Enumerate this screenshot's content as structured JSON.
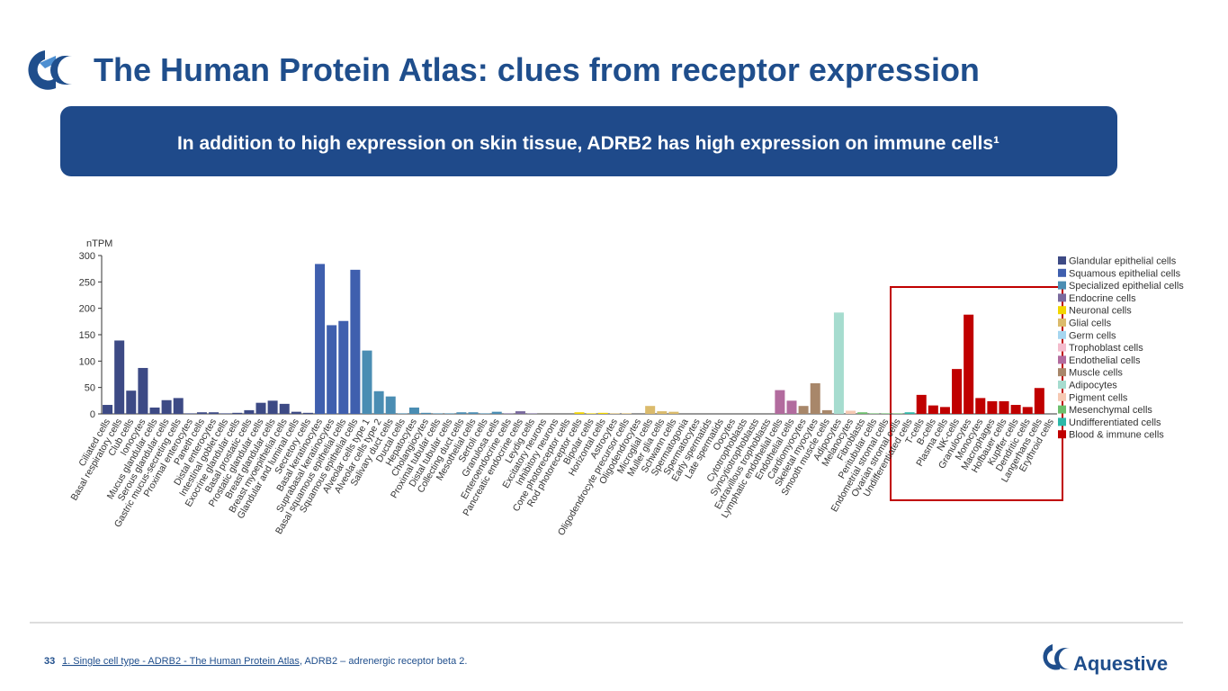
{
  "title": "The Human Protein Atlas: clues from receptor expression",
  "banner": "In addition to high expression on skin tissue, ADRB2 has high expression on immune cells¹",
  "chart_data": {
    "type": "bar",
    "y_label": "nTPM",
    "ylim": [
      0,
      300
    ],
    "yticks": [
      0,
      50,
      100,
      150,
      200,
      250,
      300
    ],
    "series": [
      {
        "name": "Glandular epithelial cells",
        "color": "#3d4a85",
        "categories": [
          "Ciliated cells",
          "Basal respiratory cells",
          "Club cells",
          "Ionocytes",
          "Mucus glandular cells",
          "Serous glandular cells",
          "Gastric mucus-secreting cells",
          "Proximal enterocytes",
          "Paneth cells",
          "Distal enterocytes",
          "Intestinal goblet cells",
          "Exocrine glandular cells",
          "Basal prostatic cells",
          "Prostatic glandular cells",
          "Breast glandular cells",
          "Breast myoepithelial cells",
          "Glandular and luminal cells",
          "Secretory cells"
        ],
        "values": [
          17,
          139,
          44,
          87,
          12,
          26,
          30,
          1,
          3,
          3,
          1,
          2,
          7,
          21,
          25,
          19,
          4,
          2
        ]
      },
      {
        "name": "Squamous epithelial cells",
        "color": "#3f5fae",
        "categories": [
          "Basal keratinocytes",
          "Suprabasal keratinocytes",
          "Basal squamous epithelial cells",
          "Squamous epithelial cells"
        ],
        "values": [
          284,
          168,
          176,
          273
        ]
      },
      {
        "name": "Specialized epithelial cells",
        "color": "#4a8db3",
        "categories": [
          "Alveolar cells type 1",
          "Alveolar cells type 2",
          "Salivary duct cells",
          "Ductal cells",
          "Hepatocytes",
          "Cholangiocytes",
          "Proximal tubular cells",
          "Distal tubular cells",
          "Collecting duct cells",
          "Mesothelial cells",
          "Sertoli cells",
          "Granulosa cells"
        ],
        "values": [
          120,
          43,
          33,
          1,
          12,
          2,
          1,
          1,
          3,
          3,
          1,
          4
        ]
      },
      {
        "name": "Endocrine cells",
        "color": "#7a6a9e",
        "categories": [
          "Enteroendocrine cells",
          "Pancreatic endocrine cells",
          "Leydig cells"
        ],
        "values": [
          1,
          5,
          1
        ]
      },
      {
        "name": "Neuronal cells",
        "color": "#f2d600",
        "categories": [
          "Excitatory neurons",
          "Inhibitory neurons",
          "Cone photoreceptor cells",
          "Rod photoreceptor cells",
          "Bipolar cells",
          "Horizontal cells"
        ],
        "values": [
          0,
          0,
          0,
          3,
          1,
          2
        ]
      },
      {
        "name": "Glial cells",
        "color": "#dbbb6c",
        "categories": [
          "Astrocytes",
          "Oligodendrocyte precursor cells",
          "Oligodendrocytes",
          "Microglial cells",
          "Muller glia cells",
          "Schwann cells"
        ],
        "values": [
          1,
          1,
          0,
          15,
          5,
          4
        ]
      },
      {
        "name": "Germ cells",
        "color": "#a6d6f0",
        "categories": [
          "Spermatogonia",
          "Spermatocytes",
          "Early spermatids",
          "Late spermatids",
          "Oocytes"
        ],
        "values": [
          0,
          0,
          0,
          0,
          0
        ]
      },
      {
        "name": "Trophoblast cells",
        "color": "#f4bccd",
        "categories": [
          "Cytotrophoblasts",
          "Syncytiotrophoblasts",
          "Extravillous trophoblasts"
        ],
        "values": [
          0,
          0,
          0
        ]
      },
      {
        "name": "Endothelial cells",
        "color": "#b26b9e",
        "categories": [
          "Lymphatic endothelial cells",
          "Endothelial cells"
        ],
        "values": [
          45,
          25
        ]
      },
      {
        "name": "Muscle cells",
        "color": "#a8876a",
        "categories": [
          "Cardiomyocytes",
          "Skeletal myocytes",
          "Smooth muscle cells"
        ],
        "values": [
          15,
          58,
          7
        ]
      },
      {
        "name": "Adipocytes",
        "color": "#a6dccf",
        "categories": [
          "Adipocytes"
        ],
        "values": [
          192
        ]
      },
      {
        "name": "Pigment cells",
        "color": "#f6c9b3",
        "categories": [
          "Melanocytes"
        ],
        "values": [
          6
        ]
      },
      {
        "name": "Mesenchymal cells",
        "color": "#6cbf6c",
        "categories": [
          "Fibroblasts",
          "Peritubular cells",
          "Endometrial stromal cells",
          "Ovarian stromal cells"
        ],
        "values": [
          3,
          1,
          1,
          1
        ]
      },
      {
        "name": "Undifferentiated cells",
        "color": "#2cb8a8",
        "categories": [
          "Undifferentiated cells"
        ],
        "values": [
          3
        ]
      },
      {
        "name": "Blood & immune cells",
        "color": "#c00000",
        "categories": [
          "T-cells",
          "B-cells",
          "Plasma cells",
          "NK-cells",
          "Granulocytes",
          "Monocytes",
          "Macrophages",
          "Hofbauer cells",
          "Kupffer cells",
          "Dendritic cells",
          "Langerhans cells",
          "Erythroid cells"
        ],
        "values": [
          36,
          16,
          13,
          85,
          188,
          30,
          24,
          24,
          17,
          13,
          49,
          0
        ]
      }
    ]
  },
  "footer": {
    "page_number": "33",
    "source_link": "1. Single cell type - ADRB2 - The Human Protein Atlas",
    "source_note": ", ADRB2 – adrenergic receptor beta 2.",
    "logo_text": "Aquestive"
  }
}
